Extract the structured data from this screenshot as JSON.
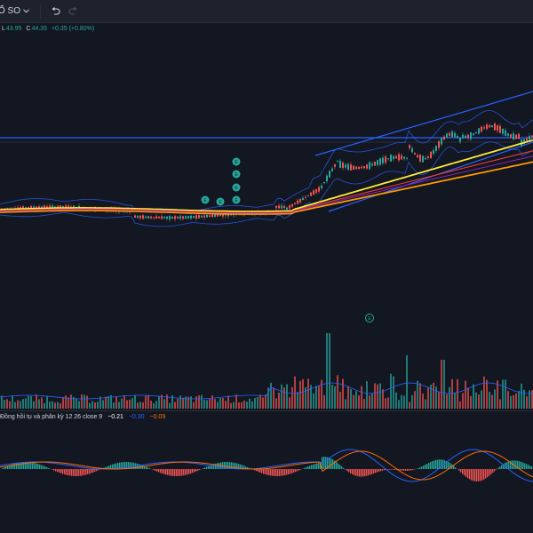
{
  "toolbar": {
    "symbol_label": "Ổ SO",
    "undo_icon": "undo-icon",
    "redo_icon": "redo-icon"
  },
  "legend": {
    "l_key": "L",
    "l_value": "43.95",
    "c_key": "C",
    "c_value": "44.35",
    "change": "+0.35 (+0.80%)"
  },
  "macd": {
    "title": "Đồng hồi tụ và phân kỳ 12 26 close 9",
    "histogram_value": "−0.21",
    "macd_value": "−0.30",
    "signal_value": "−0.09"
  },
  "event_markers": {
    "dividend_letter": "E",
    "earnings_letter": "E",
    "flag_letter": "E"
  },
  "colors": {
    "background": "#131722",
    "up": "#26a69a",
    "down": "#ef5350",
    "bollinger": "#2962ff",
    "ma_short": "#ffeb3b",
    "ma_mid": "#f57f17",
    "ma_long": "#ff9800",
    "macd_line": "#2962ff",
    "signal_line": "#ff6d00",
    "resistance": "#2962ff"
  }
}
